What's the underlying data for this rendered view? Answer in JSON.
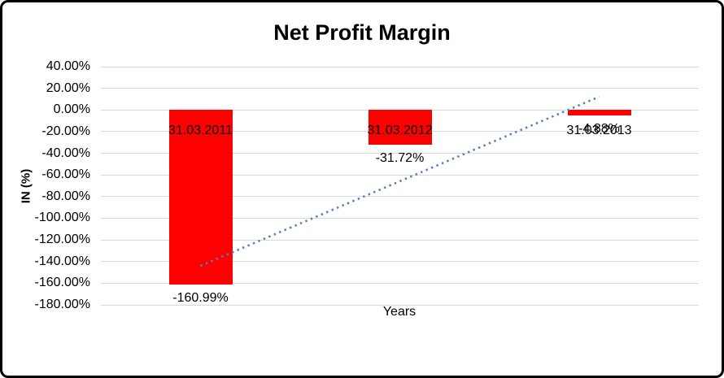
{
  "window": {
    "background": "#FFFFFF",
    "border_color": "#000000"
  },
  "chart_data": {
    "type": "bar",
    "title": "Net Profit Margin",
    "xlabel": "Years",
    "ylabel": "IN (%)",
    "categories": [
      "31.03.2011",
      "31.03.2012",
      "31.03.2013"
    ],
    "values": [
      -160.99,
      -31.72,
      -4.88
    ],
    "data_labels": [
      "-160.99%",
      "-31.72%",
      "-4.88%"
    ],
    "ylim": [
      -180,
      40
    ],
    "ytick_step": 20,
    "yticks": [
      "40.00%",
      "20.00%",
      "0.00%",
      "-20.00%",
      "-40.00%",
      "-60.00%",
      "-80.00%",
      "-100.00%",
      "-120.00%",
      "-140.00%",
      "-160.00%",
      "-180.00%"
    ],
    "grid": true,
    "legend": false,
    "bar_color": "#FF0000",
    "gridline_color": "#D9D9D9",
    "text_color": "#000000",
    "trendline": {
      "type": "linear",
      "style": "dotted",
      "color": "#4F81BD",
      "start_value": -143.9,
      "end_value": 12.2
    }
  }
}
